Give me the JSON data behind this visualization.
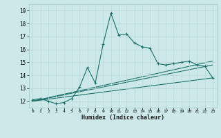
{
  "xlabel": "Humidex (Indice chaleur)",
  "bg_color": "#cce8e8",
  "grid_color": "#b8d8d8",
  "line_color": "#1a6e6a",
  "xlim": [
    -0.5,
    23.5
  ],
  "ylim": [
    11.5,
    19.5
  ],
  "xticks": [
    0,
    1,
    2,
    3,
    4,
    5,
    6,
    7,
    8,
    9,
    10,
    11,
    12,
    13,
    14,
    15,
    16,
    17,
    18,
    19,
    20,
    21,
    22,
    23
  ],
  "yticks": [
    12,
    13,
    14,
    15,
    16,
    17,
    18,
    19
  ],
  "main_x": [
    0,
    1,
    2,
    3,
    4,
    5,
    6,
    7,
    8,
    9,
    10,
    11,
    12,
    13,
    14,
    15,
    16,
    17,
    18,
    19,
    20,
    21,
    22,
    23
  ],
  "main_y": [
    12.1,
    12.2,
    12.0,
    11.8,
    11.9,
    12.2,
    13.1,
    14.6,
    13.4,
    16.4,
    18.8,
    17.1,
    17.2,
    16.5,
    16.2,
    16.1,
    14.9,
    14.8,
    14.9,
    15.0,
    15.1,
    14.8,
    14.7,
    13.8
  ],
  "trend1_x": [
    0,
    23
  ],
  "trend1_y": [
    12.0,
    15.1
  ],
  "trend2_x": [
    0,
    23
  ],
  "trend2_y": [
    12.0,
    14.8
  ],
  "trend3_x": [
    0,
    23
  ],
  "trend3_y": [
    12.0,
    13.8
  ]
}
